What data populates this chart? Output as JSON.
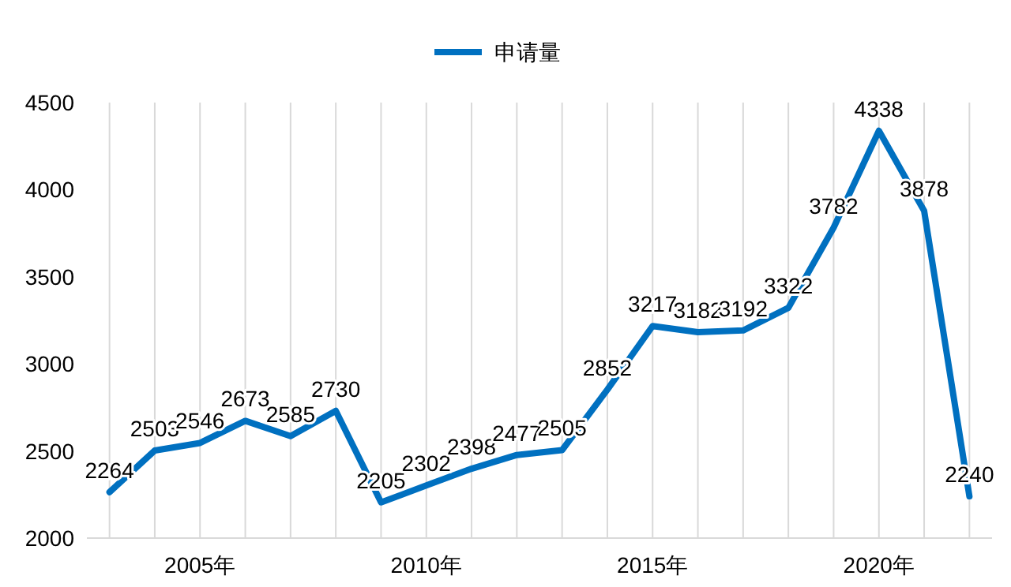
{
  "chart_data": {
    "type": "line",
    "categories": [
      null,
      null,
      "2005年",
      null,
      null,
      null,
      null,
      "2010年",
      null,
      null,
      null,
      null,
      "2015年",
      null,
      null,
      null,
      null,
      "2020年",
      null,
      null
    ],
    "series": [
      {
        "name": "申请量",
        "color": "#0070c0",
        "values": [
          2264,
          2503,
          2546,
          2673,
          2585,
          2730,
          2205,
          2302,
          2398,
          2477,
          2505,
          2852,
          3217,
          3182,
          3192,
          3322,
          3782,
          4338,
          3878,
          2240
        ]
      }
    ],
    "ylim": [
      2000,
      4500
    ],
    "yticks": [
      2000,
      2500,
      3000,
      3500,
      4000,
      4500
    ],
    "grid": "x",
    "legend": "top",
    "data_labels": true,
    "marker": "none",
    "line_style": "solid"
  }
}
